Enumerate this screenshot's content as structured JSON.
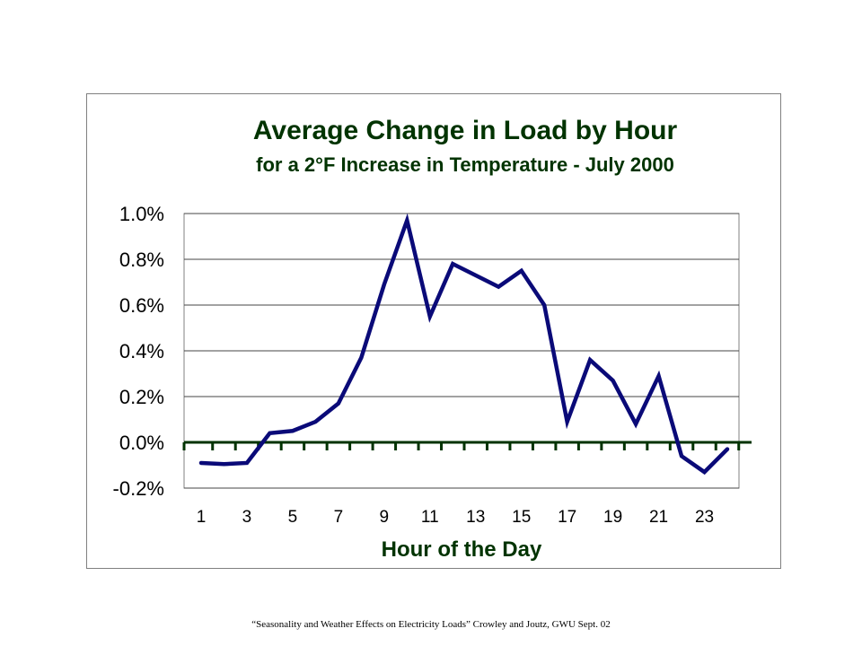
{
  "chart_data": {
    "type": "line",
    "title": "Average Change in Load by Hour",
    "subtitle": "for a 2°F Increase in Temperature - July 2000",
    "xlabel": "Hour of the Day",
    "ylabel": "",
    "x": [
      1,
      2,
      3,
      4,
      5,
      6,
      7,
      8,
      9,
      10,
      11,
      12,
      13,
      14,
      15,
      16,
      17,
      18,
      19,
      20,
      21,
      22,
      23,
      24
    ],
    "series": [
      {
        "name": "",
        "values": [
          -0.09,
          -0.095,
          -0.09,
          0.04,
          0.05,
          0.09,
          0.17,
          0.37,
          0.69,
          0.97,
          0.55,
          0.78,
          0.73,
          0.68,
          0.75,
          0.6,
          0.09,
          0.36,
          0.27,
          0.08,
          0.29,
          -0.06,
          -0.13,
          -0.03
        ]
      }
    ],
    "x_ticks": [
      1,
      3,
      5,
      7,
      9,
      11,
      13,
      15,
      17,
      19,
      21,
      23
    ],
    "y_ticks": [
      "-0.2%",
      "0.0%",
      "0.2%",
      "0.4%",
      "0.6%",
      "0.8%",
      "1.0%"
    ],
    "y_tick_values": [
      -0.2,
      0.0,
      0.2,
      0.4,
      0.6,
      0.8,
      1.0
    ],
    "ylim": [
      -0.2,
      1.0
    ],
    "xlim": [
      1,
      24
    ],
    "grid": true,
    "colors": {
      "line": "#0a0a78",
      "title": "#003300",
      "grid": "#444444",
      "zero_axis": "#003300"
    }
  },
  "footer": "“Seasonality and Weather Effects on Electricity Loads” Crowley  and Joutz, GWU Sept. 02"
}
